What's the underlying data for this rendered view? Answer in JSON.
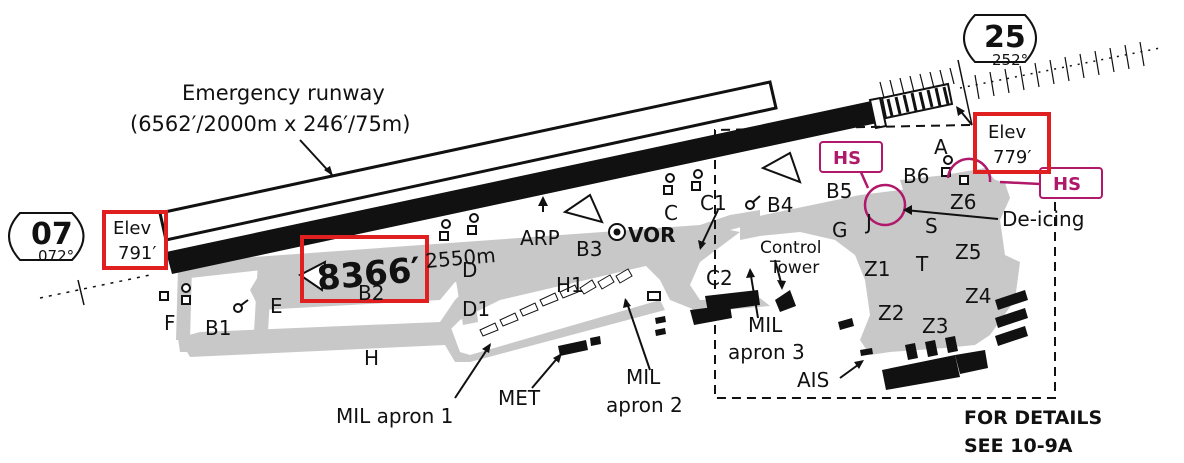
{
  "runways": {
    "west_end": {
      "designator": "07",
      "bearing": "072°"
    },
    "east_end": {
      "designator": "25",
      "bearing": "252°"
    },
    "length_ft": "8366′",
    "length_m": "2550m"
  },
  "emergency_runway": {
    "title": "Emergency runway",
    "dimensions": "(6562′/2000m x 246′/75m)"
  },
  "elevations": {
    "west": {
      "label": "Elev",
      "value": "791′"
    },
    "east": {
      "label": "Elev",
      "value": "779′"
    }
  },
  "taxiways": {
    "a": "A",
    "b1": "B1",
    "b2": "B2",
    "b3": "B3",
    "b4": "B4",
    "b5": "B5",
    "b6": "B6",
    "c": "C",
    "c1": "C1",
    "c2": "C2",
    "d": "D",
    "d1": "D1",
    "e": "E",
    "f": "F",
    "g": "G",
    "h": "H",
    "h1": "H1",
    "j": "J",
    "s": "S",
    "t": "T",
    "z1": "Z1",
    "z2": "Z2",
    "z3": "Z3",
    "z4": "Z4",
    "z5": "Z5",
    "z6": "Z6"
  },
  "features": {
    "arp": "ARP",
    "vor": "VOR",
    "control_tower_line1": "Control",
    "control_tower_line2": "Tower",
    "de_icing": "De-icing",
    "hs_1": "HS",
    "hs_2": "HS",
    "mil_apron_1": "MIL apron 1",
    "mil_apron_2_line1": "MIL",
    "mil_apron_2_line2": "apron 2",
    "mil_apron_3_line1": "MIL",
    "mil_apron_3_line2": "apron 3",
    "met": "MET",
    "ais": "AIS"
  },
  "details_note": {
    "line1": "FOR DETAILS",
    "line2": "SEE 10-9A"
  },
  "colors": {
    "ink": "#111111",
    "taxiway_fill": "#c8c8c8",
    "hot_spot": "#b0186a",
    "highlight_box": "#e02020"
  }
}
